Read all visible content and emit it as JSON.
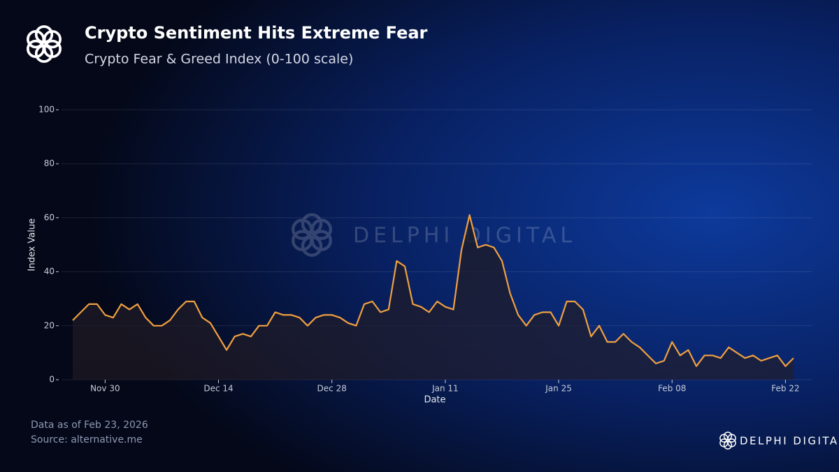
{
  "chart_data": {
    "type": "line",
    "title": "Crypto Sentiment Hits Extreme Fear",
    "subtitle": "Crypto Fear & Greed Index (0-100 scale)",
    "y_label": "Index Value",
    "x_label": "Date",
    "notes": [
      "Data as of Feb 23, 2026",
      "Source: alternative.me"
    ],
    "watermark": "DELPHI DIGITAL",
    "brand": "DELPHI DIGITAL",
    "x": [
      "Nov 26",
      "Nov 27",
      "Nov 28",
      "Nov 29",
      "Nov 30",
      "Dec 01",
      "Dec 02",
      "Dec 03",
      "Dec 04",
      "Dec 05",
      "Dec 06",
      "Dec 07",
      "Dec 08",
      "Dec 09",
      "Dec 10",
      "Dec 11",
      "Dec 12",
      "Dec 13",
      "Dec 14",
      "Dec 15",
      "Dec 16",
      "Dec 17",
      "Dec 18",
      "Dec 19",
      "Dec 20",
      "Dec 21",
      "Dec 22",
      "Dec 23",
      "Dec 24",
      "Dec 25",
      "Dec 26",
      "Dec 27",
      "Dec 28",
      "Dec 29",
      "Dec 30",
      "Dec 31",
      "Jan 01",
      "Jan 02",
      "Jan 03",
      "Jan 04",
      "Jan 05",
      "Jan 06",
      "Jan 07",
      "Jan 08",
      "Jan 09",
      "Jan 10",
      "Jan 11",
      "Jan 12",
      "Jan 13",
      "Jan 14",
      "Jan 15",
      "Jan 16",
      "Jan 17",
      "Jan 18",
      "Jan 19",
      "Jan 20",
      "Jan 21",
      "Jan 22",
      "Jan 23",
      "Jan 24",
      "Jan 25",
      "Jan 26",
      "Jan 27",
      "Jan 28",
      "Jan 29",
      "Jan 30",
      "Jan 31",
      "Feb 01",
      "Feb 02",
      "Feb 03",
      "Feb 04",
      "Feb 05",
      "Feb 06",
      "Feb 07",
      "Feb 08",
      "Feb 09",
      "Feb 10",
      "Feb 11",
      "Feb 12",
      "Feb 13",
      "Feb 14",
      "Feb 15",
      "Feb 16",
      "Feb 17",
      "Feb 18",
      "Feb 19",
      "Feb 20",
      "Feb 21",
      "Feb 22",
      "Feb 23"
    ],
    "series": [
      {
        "name": "Crypto Fear & Greed Index",
        "color": "#f0a040",
        "values": [
          22,
          25,
          28,
          28,
          24,
          23,
          28,
          26,
          28,
          23,
          20,
          20,
          22,
          26,
          29,
          29,
          23,
          21,
          16,
          11,
          16,
          17,
          16,
          20,
          20,
          25,
          24,
          24,
          23,
          20,
          23,
          24,
          24,
          23,
          21,
          20,
          28,
          29,
          25,
          26,
          44,
          42,
          28,
          27,
          25,
          29,
          27,
          26,
          48,
          61,
          49,
          50,
          49,
          44,
          32,
          24,
          20,
          24,
          25,
          25,
          20,
          29,
          29,
          26,
          16,
          20,
          14,
          14,
          17,
          14,
          12,
          9,
          6,
          7,
          14,
          9,
          11,
          5,
          9,
          9,
          8,
          12,
          10,
          8,
          9,
          7,
          8,
          9,
          5,
          8
        ]
      }
    ],
    "xticks": [
      "Nov 30",
      "Dec 14",
      "Dec 28",
      "Jan 11",
      "Jan 25",
      "Feb 08",
      "Feb 22"
    ],
    "ylim": [
      0,
      100
    ],
    "yticks": [
      0,
      20,
      40,
      60,
      80,
      100
    ],
    "grid": true
  }
}
